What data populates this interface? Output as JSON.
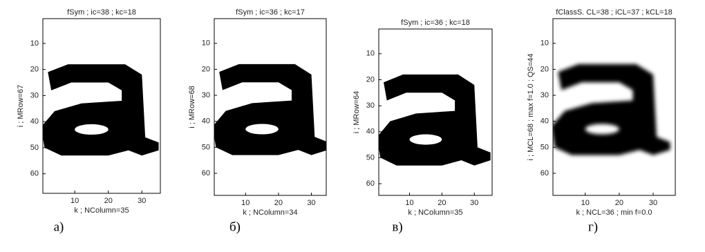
{
  "panels": [
    {
      "title": "fSym ; ic=38 ; kc=18",
      "y_label": "i ; MRow=67",
      "x_label": "k ; NColumn=35",
      "caption": "а)",
      "xlim": [
        0.5,
        35.5
      ],
      "ylim": [
        0.5,
        67.5
      ],
      "xticks": [
        10,
        20,
        30
      ],
      "yticks": [
        10,
        20,
        30,
        40,
        50,
        60
      ]
    },
    {
      "title": "fSym ; ic=36 ; kc=17",
      "y_label": "i ; MRow=68",
      "x_label": "k ; NColumn=34",
      "caption": "б)",
      "xlim": [
        0.5,
        34.5
      ],
      "ylim": [
        0.5,
        68.5
      ],
      "xticks": [
        10,
        20,
        30
      ],
      "yticks": [
        10,
        20,
        30,
        40,
        50,
        60
      ]
    },
    {
      "title": "fSym ; ic=36 ; kc=18",
      "y_label": "i ; MRow=64",
      "x_label": "k ; NColumn=35",
      "caption": "в)",
      "xlim": [
        0.5,
        35.5
      ],
      "ylim": [
        0.5,
        64.5
      ],
      "xticks": [
        10,
        20,
        30
      ],
      "yticks": [
        10,
        20,
        30,
        40,
        50,
        60
      ]
    },
    {
      "title": "fClassS. CL=38 ; iCL=37 ; kCL=18",
      "y_label": "i ; MCL=68 ; max f=1.0 ; QS=44",
      "x_label": "k ; NCL=36 ; min f=0.0",
      "caption": "г)",
      "xlim": [
        0.5,
        36.5
      ],
      "ylim": [
        0.5,
        68.5
      ],
      "xticks": [
        10,
        20,
        30
      ],
      "yticks": [
        10,
        20,
        30,
        40,
        50,
        60
      ]
    }
  ]
}
